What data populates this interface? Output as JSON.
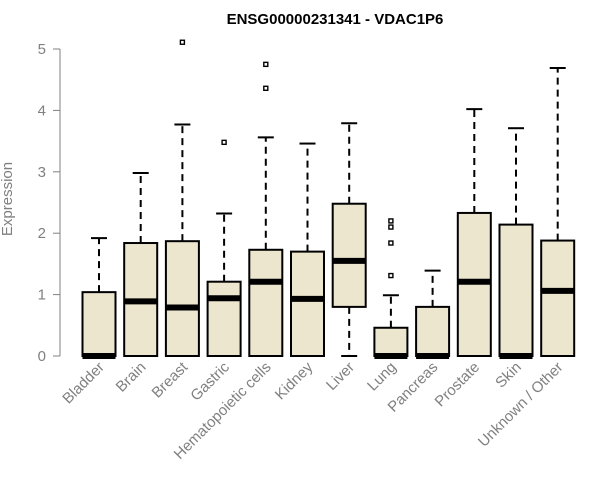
{
  "chart_data": {
    "type": "boxplot",
    "title": "ENSG00000231341 - VDAC1P6",
    "xlabel": "",
    "ylabel": "Expression",
    "ylim": [
      0,
      5
    ],
    "yticks": [
      0,
      1,
      2,
      3,
      4,
      5
    ],
    "box_color": "#ede6cf",
    "outline_color": "#000000",
    "axis_color": "#808080",
    "categories": [
      "Bladder",
      "Brain",
      "Breast",
      "Gastric",
      "Hematopoietic cells",
      "Kidney",
      "Liver",
      "Lung",
      "Pancreas",
      "Prostate",
      "Skin",
      "Unknown / Other"
    ],
    "boxes": [
      {
        "name": "Bladder",
        "min": 0,
        "q1": 0,
        "median": 0,
        "q3": 1.04,
        "max": 1.92,
        "outliers": []
      },
      {
        "name": "Brain",
        "min": 0,
        "q1": 0,
        "median": 0.89,
        "q3": 1.84,
        "max": 2.98,
        "outliers": []
      },
      {
        "name": "Breast",
        "min": 0,
        "q1": 0,
        "median": 0.79,
        "q3": 1.87,
        "max": 3.77,
        "outliers": [
          5.11
        ]
      },
      {
        "name": "Gastric",
        "min": 0,
        "q1": 0,
        "median": 0.94,
        "q3": 1.21,
        "max": 2.32,
        "outliers": [
          3.48
        ]
      },
      {
        "name": "Hematopoietic cells",
        "min": 0,
        "q1": 0,
        "median": 1.21,
        "q3": 1.73,
        "max": 3.56,
        "outliers": [
          4.36,
          4.75
        ]
      },
      {
        "name": "Kidney",
        "min": 0,
        "q1": 0,
        "median": 0.93,
        "q3": 1.7,
        "max": 3.46,
        "outliers": []
      },
      {
        "name": "Liver",
        "min": 0,
        "q1": 0.8,
        "median": 1.55,
        "q3": 2.48,
        "max": 3.79,
        "outliers": []
      },
      {
        "name": "Lung",
        "min": 0,
        "q1": 0,
        "median": 0,
        "q3": 0.46,
        "max": 0.99,
        "outliers": [
          1.31,
          1.84,
          2.1,
          2.2
        ]
      },
      {
        "name": "Pancreas",
        "min": 0,
        "q1": 0,
        "median": 0,
        "q3": 0.8,
        "max": 1.39,
        "outliers": []
      },
      {
        "name": "Prostate",
        "min": 0,
        "q1": 0,
        "median": 1.21,
        "q3": 2.33,
        "max": 4.02,
        "outliers": []
      },
      {
        "name": "Skin",
        "min": 0,
        "q1": 0,
        "median": 0,
        "q3": 2.14,
        "max": 3.71,
        "outliers": []
      },
      {
        "name": "Unknown / Other",
        "min": 0,
        "q1": 0,
        "median": 1.06,
        "q3": 1.88,
        "max": 4.69,
        "outliers": []
      }
    ]
  }
}
